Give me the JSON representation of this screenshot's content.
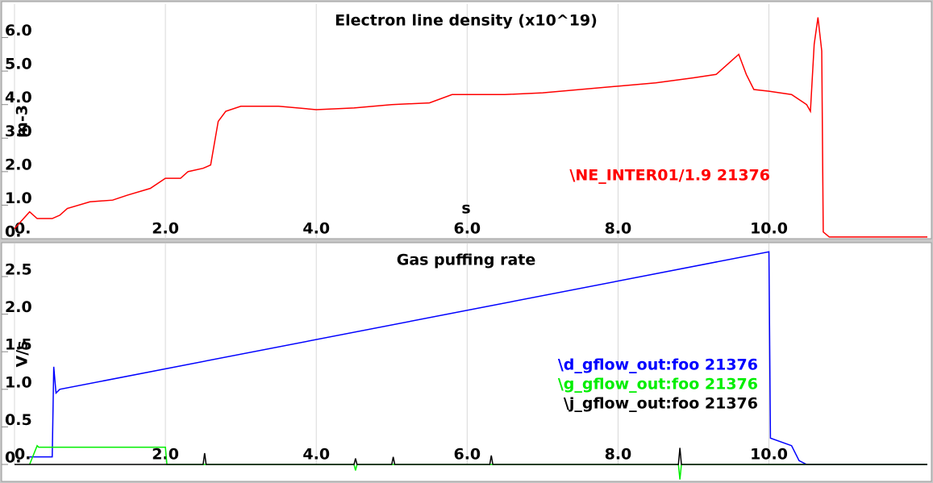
{
  "chart_data": [
    {
      "type": "line",
      "title": "Electron line density (x10^19)",
      "xlabel": "s",
      "ylabel": "m-3",
      "xlim": [
        0,
        12.1
      ],
      "ylim": [
        0,
        7.0
      ],
      "grid": true,
      "xticks": [
        {
          "value": 0,
          "label": "0."
        },
        {
          "value": 2,
          "label": "2.0"
        },
        {
          "value": 4,
          "label": "4.0"
        },
        {
          "value": 6,
          "label": "6.0"
        },
        {
          "value": 8,
          "label": "8.0"
        },
        {
          "value": 10,
          "label": "10.0"
        }
      ],
      "yticks": [
        {
          "value": 0,
          "label": "0."
        },
        {
          "value": 1,
          "label": "1.0"
        },
        {
          "value": 2,
          "label": "2.0"
        },
        {
          "value": 3,
          "label": "3.0"
        },
        {
          "value": 4,
          "label": "4.0"
        },
        {
          "value": 5,
          "label": "5.0"
        },
        {
          "value": 6,
          "label": "6.0"
        }
      ],
      "series": [
        {
          "name": "\\NE_INTER01/1.9 21376",
          "color": "#ff0000",
          "x": [
            0,
            0.2,
            0.3,
            0.5,
            0.6,
            0.7,
            1.0,
            1.3,
            1.5,
            1.8,
            2.0,
            2.2,
            2.3,
            2.5,
            2.6,
            2.7,
            2.8,
            3.0,
            3.5,
            4.0,
            4.5,
            5.0,
            5.5,
            5.8,
            6.5,
            7.0,
            8.0,
            8.5,
            9.0,
            9.3,
            9.5,
            9.6,
            9.7,
            9.8,
            10.0,
            10.3,
            10.5,
            10.55,
            10.6,
            10.65,
            10.7,
            10.72,
            10.8,
            12.1
          ],
          "values": [
            0.3,
            0.8,
            0.6,
            0.6,
            0.7,
            0.9,
            1.1,
            1.15,
            1.3,
            1.5,
            1.8,
            1.8,
            2.0,
            2.1,
            2.2,
            3.5,
            3.8,
            3.95,
            3.95,
            3.85,
            3.9,
            4.0,
            4.05,
            4.3,
            4.3,
            4.35,
            4.55,
            4.65,
            4.8,
            4.9,
            5.3,
            5.5,
            4.9,
            4.45,
            4.4,
            4.3,
            4.0,
            3.8,
            5.8,
            6.6,
            5.6,
            0.2,
            0.05,
            0.05
          ]
        }
      ]
    },
    {
      "type": "line",
      "title": "Gas puffing rate",
      "ylabel": "V/s",
      "xlim": [
        0,
        12.1
      ],
      "ylim": [
        0,
        2.94
      ],
      "grid": true,
      "xticks": [
        {
          "value": 0,
          "label": "0."
        },
        {
          "value": 2,
          "label": "2.0"
        },
        {
          "value": 4,
          "label": "4.0"
        },
        {
          "value": 6,
          "label": "6.0"
        },
        {
          "value": 8,
          "label": "8.0"
        },
        {
          "value": 10,
          "label": "10.0"
        }
      ],
      "yticks": [
        {
          "value": 0,
          "label": "0."
        },
        0.5,
        {
          "value": 1,
          "label": "1.0"
        },
        1.5,
        {
          "value": 2,
          "label": "2.0"
        },
        2.5
      ],
      "series": [
        {
          "name": "\\d_gflow_out:foo 21376",
          "color": "#0000ff",
          "x": [
            0.2,
            0.5,
            0.52,
            0.55,
            0.6,
            10.0,
            10.02,
            10.3,
            10.4,
            10.5,
            12.1
          ],
          "values": [
            0.1,
            0.1,
            1.3,
            0.95,
            1.0,
            2.83,
            0.35,
            0.25,
            0.05,
            0,
            0
          ]
        },
        {
          "name": "\\g_gflow_out:foo 21376",
          "color": "#00ee00",
          "x": [
            0.2,
            0.3,
            0.32,
            2.0,
            2.02,
            4.5,
            4.52,
            4.54,
            8.8,
            8.82,
            8.84,
            12.1
          ],
          "values": [
            0,
            0.25,
            0.23,
            0.23,
            0,
            0,
            -0.08,
            0,
            0,
            -0.2,
            0,
            0
          ]
        },
        {
          "name": "\\j_gflow_out:foo 21376",
          "color": "#000000",
          "x": [
            0,
            2.5,
            2.52,
            2.54,
            4.5,
            4.52,
            4.54,
            5.0,
            5.02,
            5.04,
            6.3,
            6.32,
            6.34,
            8.8,
            8.82,
            8.84,
            12.1
          ],
          "values": [
            0,
            0,
            0.15,
            0,
            0,
            0.08,
            0,
            0,
            0.1,
            0,
            0,
            0.12,
            0,
            0,
            0.22,
            0,
            0
          ]
        }
      ]
    }
  ]
}
